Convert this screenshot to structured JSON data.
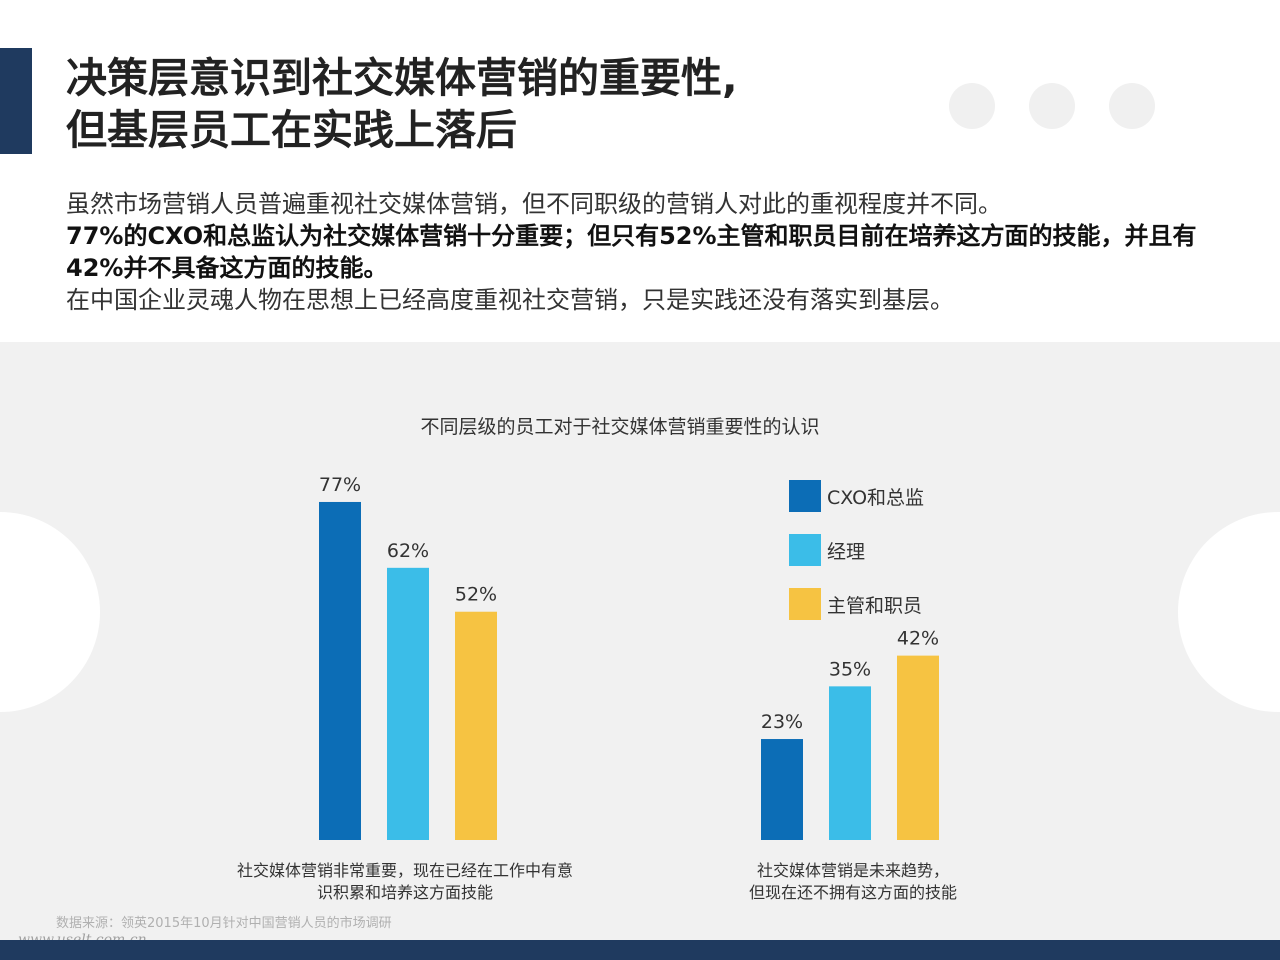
{
  "header": {
    "title_line1": "决策层意识到社交媒体营销的重要性,",
    "title_line2": "但基层员工在实践上落后"
  },
  "intro": {
    "line1": "虽然市场营销人员普遍重视社交媒体营销，但不同职级的营销人对此的重视程度并不同。",
    "line2": "77%的CXO和总监认为社交媒体营销十分重要；但只有52%主管和职员目前在培养这方面的技能，并且有42%并不具备这方面的技能。",
    "line3": "在中国企业灵魂人物在思想上已经高度重视社交营销，只是实践还没有落实到基层。"
  },
  "chart_data": {
    "type": "bar",
    "title": "不同层级的员工对于社交媒体营销重要性的认识",
    "categories": [
      "社交媒体营销非常重要，现在已经在工作中有意识积累和培养这方面技能",
      "社交媒体营销是未来趋势，但现在还不拥有这方面的技能"
    ],
    "category_lines": [
      [
        "社交媒体营销非常重要，现在已经在工作中有意",
        "识积累和培养这方面技能"
      ],
      [
        "社交媒体营销是未来趋势，",
        "但现在还不拥有这方面的技能"
      ]
    ],
    "series": [
      {
        "name": "CXO和总监",
        "values": [
          77,
          23
        ],
        "labels": [
          "77%",
          "23%"
        ],
        "color": "#0c6db6"
      },
      {
        "name": "经理",
        "values": [
          62,
          35
        ],
        "labels": [
          "62%",
          "35%"
        ],
        "color": "#3bbde8"
      },
      {
        "name": "主管和职员",
        "values": [
          52,
          42
        ],
        "labels": [
          "52%",
          "42%"
        ],
        "color": "#f6c342"
      }
    ],
    "unit": "%",
    "ylim": [
      0,
      100
    ],
    "grid": false,
    "legend": "top-right"
  },
  "footer": {
    "source": "数据来源：领英2015年10月针对中国营销人员的市场调研",
    "watermark": "www.uselt.com.cn"
  }
}
